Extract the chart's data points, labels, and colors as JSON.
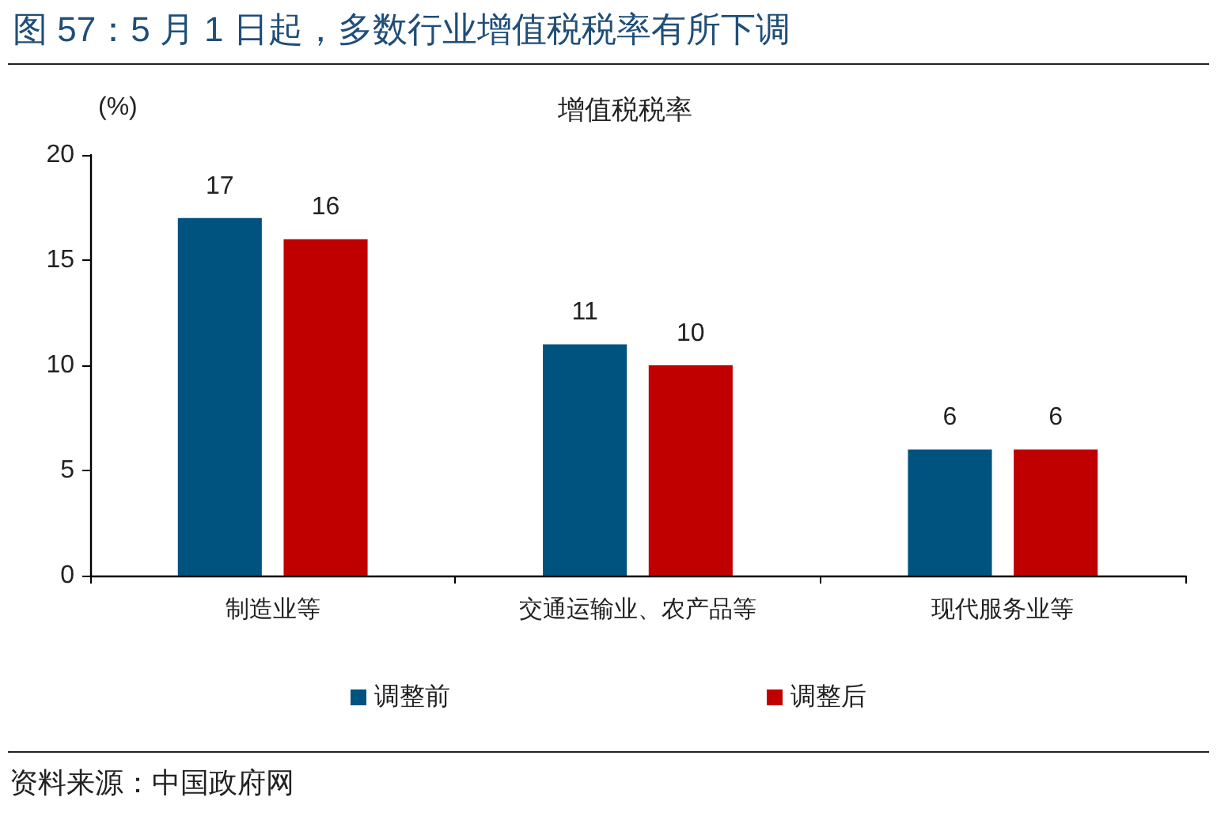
{
  "chart_data": {
    "type": "bar",
    "title": "图 57：5 月 1 日起，多数行业增值税税率有所下调",
    "subtitle": "增值税税率",
    "ylabel": "(%)",
    "categories": [
      "制造业等",
      "交通运输业、农产品等",
      "现代服务业等"
    ],
    "series": [
      {
        "name": "调整前",
        "color": "#00527f",
        "values": [
          17,
          11,
          6
        ]
      },
      {
        "name": "调整后",
        "color": "#c00000",
        "values": [
          16,
          10,
          6
        ]
      }
    ],
    "ylim": [
      0,
      20
    ],
    "yticks": [
      0,
      5,
      10,
      15,
      20
    ],
    "legend": "bottom",
    "data_labels": true,
    "annotations": [
      "资料来源：中国政府网"
    ]
  }
}
